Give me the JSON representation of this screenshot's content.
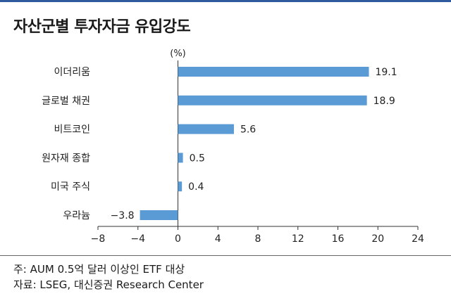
{
  "title": "자산군별 투자자금 유입강도",
  "colors": {
    "bar": "#5b9bd5",
    "axis": "#333333",
    "accent": "#2f5b9e"
  },
  "chart_data": {
    "type": "bar",
    "orientation": "horizontal",
    "unit_label": "(%)",
    "categories": [
      "이더리움",
      "글로벌 채권",
      "비트코인",
      "원자재 종합",
      "미국 주식",
      "우라늄"
    ],
    "values": [
      19.1,
      18.9,
      5.6,
      0.5,
      0.4,
      -3.8
    ],
    "value_labels": [
      "19.1",
      "18.9",
      "5.6",
      "0.5",
      "0.4",
      "−3.8"
    ],
    "xlim": [
      -8,
      24
    ],
    "xticks": [
      -8,
      -4,
      0,
      4,
      8,
      12,
      16,
      20,
      24
    ],
    "xtick_labels": [
      "−8",
      "−4",
      "0",
      "4",
      "8",
      "12",
      "16",
      "20",
      "24"
    ],
    "grid": false,
    "legend": "none"
  },
  "notes": {
    "note": "주: AUM 0.5억 달러 이상인 ETF 대상",
    "source": "자료: LSEG, 대신증권 Research Center"
  }
}
